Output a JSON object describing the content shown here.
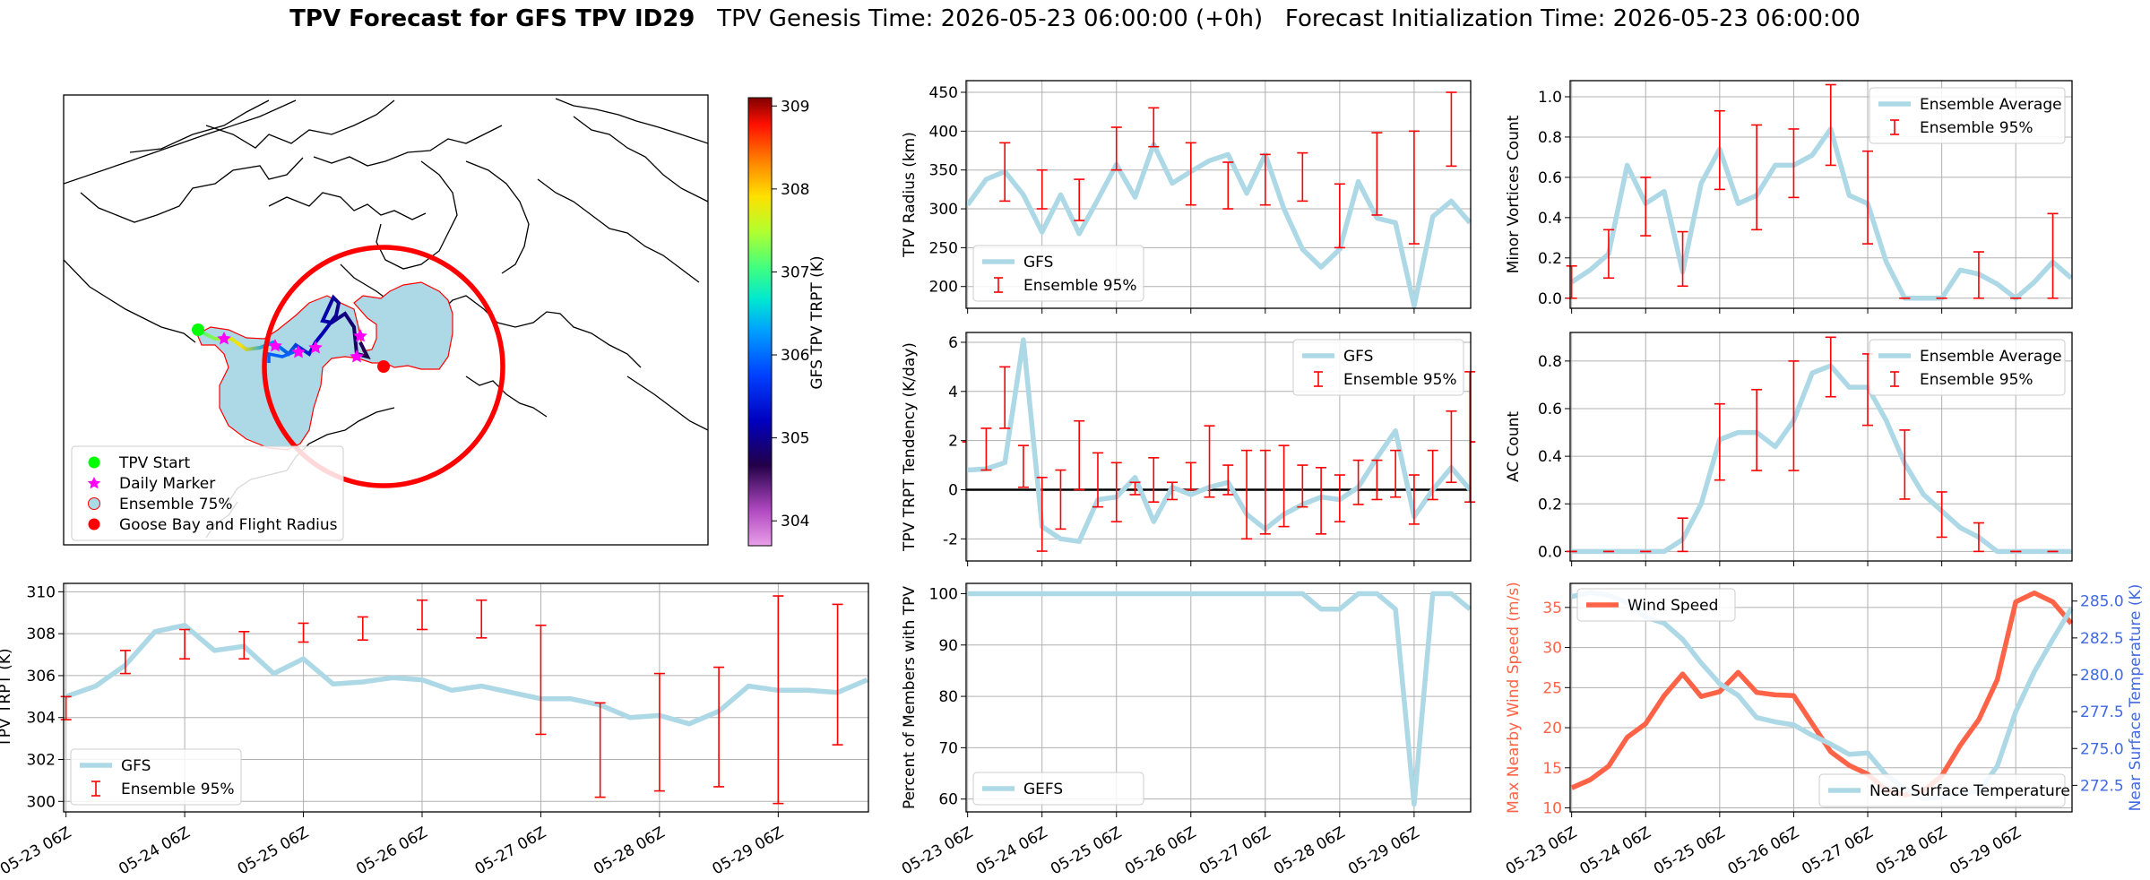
{
  "figure": {
    "title_bold": "TPV Forecast for GFS TPV ID29",
    "title_rest": "   TPV Genesis Time: 2026-05-23 06:00:00 (+0h)   Forecast Initialization Time: 2026-05-23 06:00:00"
  },
  "map": {
    "colorbar_label": "GFS TPV TRPT (K)",
    "colorbar_ticks": [
      304,
      305,
      306,
      307,
      308,
      309
    ],
    "colorbar_range": [
      303.7,
      309.1
    ],
    "legend": [
      {
        "label": "TPV Start",
        "marker": "circle",
        "color": "#00ff00"
      },
      {
        "label": "Daily Marker",
        "marker": "star",
        "color": "#ff00ff"
      },
      {
        "label": "Ensemble 75%",
        "marker": "patch",
        "color": "#add8e6"
      },
      {
        "label": "Goose Bay and Flight Radius",
        "marker": "circle",
        "color": "#ff0000"
      }
    ]
  },
  "colors": {
    "gfs": "#add8e6",
    "ensemble": "#ff0000",
    "wind": "#ff6347",
    "temp_axis": "#4169e1",
    "zero_line": "#000000"
  },
  "chart_data": [
    {
      "id": "radius",
      "type": "line",
      "ylabel": "TPV Radius (km)",
      "yticks": [
        200,
        250,
        300,
        350,
        400,
        450
      ],
      "ylim": [
        172,
        465
      ],
      "x": [
        0,
        0.25,
        0.5,
        0.75,
        1,
        1.25,
        1.5,
        1.75,
        2,
        2.25,
        2.5,
        2.75,
        3,
        3.25,
        3.5,
        3.75,
        4,
        4.25,
        4.5,
        4.75,
        5,
        5.25,
        5.5,
        5.75,
        6,
        6.25,
        6.5,
        6.75
      ],
      "series": [
        {
          "name": "GFS",
          "values": [
            305,
            338,
            348,
            318,
            270,
            318,
            268,
            312,
            357,
            315,
            383,
            333,
            348,
            362,
            370,
            320,
            370,
            300,
            248,
            225,
            248,
            335,
            288,
            282,
            175,
            290,
            310,
            282
          ]
        },
        {
          "name": "Ensemble 95%",
          "kind": "errorbar",
          "x": [
            0,
            0.25,
            0.5,
            0.75,
            1,
            1.25,
            1.5,
            1.75,
            2,
            2.25,
            2.5,
            2.75,
            3,
            3.25,
            3.5,
            3.75,
            4,
            4.25,
            4.5,
            4.75,
            5,
            5.25,
            5.5,
            5.75,
            6,
            6.25,
            6.5,
            6.75
          ],
          "lo": [
            0,
            0,
            310,
            0,
            300,
            0,
            285,
            0,
            350,
            0,
            380,
            0,
            305,
            0,
            300,
            0,
            305,
            0,
            310,
            0,
            250,
            0,
            292,
            0,
            255,
            0,
            355,
            0
          ],
          "hi": [
            0,
            0,
            385,
            0,
            350,
            0,
            338,
            0,
            405,
            0,
            430,
            0,
            385,
            0,
            360,
            0,
            370,
            0,
            372,
            0,
            332,
            0,
            398,
            0,
            400,
            0,
            450,
            0
          ]
        }
      ],
      "legend_loc": "lower-left"
    },
    {
      "id": "minor",
      "type": "line",
      "ylabel": "Minor Vortices Count",
      "yticks": [
        0.0,
        0.2,
        0.4,
        0.6,
        0.8,
        1.0
      ],
      "ylim": [
        -0.05,
        1.08
      ],
      "x": [
        0,
        0.25,
        0.5,
        0.75,
        1,
        1.25,
        1.5,
        1.75,
        2,
        2.25,
        2.5,
        2.75,
        3,
        3.25,
        3.5,
        3.75,
        4,
        4.25,
        4.5,
        4.75,
        5,
        5.25,
        5.5,
        5.75,
        6,
        6.25,
        6.5,
        6.75
      ],
      "series": [
        {
          "name": "Ensemble Average",
          "values": [
            0.08,
            0.14,
            0.22,
            0.66,
            0.47,
            0.53,
            0.13,
            0.57,
            0.74,
            0.47,
            0.51,
            0.66,
            0.66,
            0.71,
            0.84,
            0.51,
            0.47,
            0.18,
            0.0,
            0.0,
            0.0,
            0.14,
            0.12,
            0.07,
            0.0,
            0.08,
            0.18,
            0.1
          ]
        },
        {
          "name": "Ensemble 95%",
          "kind": "errorbar",
          "x": [
            0,
            0.5,
            1,
            1.5,
            2,
            2.5,
            3,
            3.5,
            4,
            4.5,
            5,
            5.5,
            6,
            6.5
          ],
          "lo": [
            0.0,
            0.1,
            0.31,
            0.06,
            0.54,
            0.34,
            0.5,
            0.66,
            0.27,
            0.0,
            0.0,
            0.0,
            0.0,
            0.0
          ],
          "hi": [
            0.16,
            0.34,
            0.6,
            0.33,
            0.93,
            0.86,
            0.84,
            1.06,
            0.73,
            0.0,
            0.0,
            0.23,
            0.0,
            0.42
          ]
        }
      ],
      "legend_loc": "upper-right"
    },
    {
      "id": "tendency",
      "type": "line",
      "ylabel": "TPV TRPT Tendency (K/day)",
      "yticks": [
        -2,
        0,
        2,
        4,
        6
      ],
      "ylim": [
        -2.9,
        6.4
      ],
      "zero_line": true,
      "x": [
        0,
        0.25,
        0.5,
        0.75,
        1,
        1.25,
        1.5,
        1.75,
        2,
        2.25,
        2.5,
        2.75,
        3,
        3.25,
        3.5,
        3.75,
        4,
        4.25,
        4.5,
        4.75,
        5,
        5.25,
        5.5,
        5.75,
        6,
        6.25,
        6.5,
        6.75
      ],
      "series": [
        {
          "name": "GFS",
          "values": [
            0.8,
            0.85,
            1.1,
            6.1,
            -1.5,
            -2.0,
            -2.1,
            -0.4,
            -0.3,
            0.5,
            -1.3,
            0.1,
            -0.2,
            0.1,
            0.3,
            -1.0,
            -1.6,
            -1.0,
            -0.6,
            -0.3,
            -0.4,
            0.1,
            1.3,
            2.4,
            -1.1,
            0.0,
            0.9,
            0.0
          ]
        },
        {
          "name": "Ensemble 95%",
          "kind": "errorbar",
          "x": [
            0.25,
            0.5,
            0.75,
            1,
            1.25,
            1.5,
            1.75,
            2,
            2.25,
            2.5,
            2.75,
            3,
            3.25,
            3.5,
            3.75,
            4,
            4.25,
            4.5,
            4.75,
            5,
            5.25,
            5.5,
            5.75,
            6,
            6.25,
            6.5,
            6.75
          ],
          "lo": [
            0.8,
            2.5,
            0.1,
            -2.5,
            -1.6,
            0.0,
            -0.7,
            -1.3,
            -0.2,
            -0.5,
            -0.4,
            0.0,
            -0.3,
            -0.2,
            -2.0,
            -1.8,
            -1.5,
            -0.7,
            -1.8,
            -1.3,
            -0.6,
            -0.4,
            -0.3,
            -1.4,
            -0.4,
            0.3,
            -0.5
          ],
          "hi": [
            2.5,
            5.0,
            1.8,
            0.5,
            0.8,
            2.8,
            1.5,
            1.1,
            0.3,
            1.3,
            0.3,
            1.1,
            2.6,
            1.0,
            1.6,
            1.6,
            1.8,
            1.0,
            0.9,
            0.6,
            1.2,
            1.2,
            1.6,
            0.6,
            1.6,
            3.2,
            4.8
          ]
        }
      ],
      "legend_loc": "upper-right"
    },
    {
      "id": "ac",
      "type": "line",
      "ylabel": "AC Count",
      "yticks": [
        0.0,
        0.2,
        0.4,
        0.6,
        0.8
      ],
      "ylim": [
        -0.04,
        0.92
      ],
      "x": [
        0,
        0.25,
        0.5,
        0.75,
        1,
        1.25,
        1.5,
        1.75,
        2,
        2.25,
        2.5,
        2.75,
        3,
        3.25,
        3.5,
        3.75,
        4,
        4.25,
        4.5,
        4.75,
        5,
        5.25,
        5.5,
        5.75,
        6,
        6.25,
        6.5,
        6.75
      ],
      "series": [
        {
          "name": "Ensemble Average",
          "values": [
            0.0,
            0.0,
            0.0,
            0.0,
            0.0,
            0.0,
            0.05,
            0.2,
            0.47,
            0.5,
            0.5,
            0.44,
            0.55,
            0.75,
            0.78,
            0.69,
            0.69,
            0.55,
            0.37,
            0.24,
            0.17,
            0.1,
            0.06,
            0.0,
            0.0,
            0.0,
            0.0,
            0.0
          ]
        },
        {
          "name": "Ensemble 95%",
          "kind": "errorbar",
          "x": [
            0,
            0.5,
            1,
            1.5,
            2,
            2.5,
            3,
            3.5,
            4,
            4.5,
            5,
            5.5,
            6,
            6.5
          ],
          "lo": [
            0.0,
            0.0,
            0.0,
            0.0,
            0.3,
            0.34,
            0.34,
            0.65,
            0.53,
            0.22,
            0.06,
            0.0,
            0.0,
            0.0
          ],
          "hi": [
            0.0,
            0.0,
            0.0,
            0.14,
            0.62,
            0.68,
            0.8,
            0.9,
            0.83,
            0.51,
            0.25,
            0.12,
            0.0,
            0.0
          ]
        }
      ],
      "legend_loc": "upper-right"
    },
    {
      "id": "trpt",
      "type": "line",
      "ylabel": "TPV TRPT (K)",
      "yticks": [
        300,
        302,
        304,
        306,
        308,
        310
      ],
      "ylim": [
        299.5,
        310.4
      ],
      "xtick_labels": [
        "05-23 06Z",
        "05-24 06Z",
        "05-25 06Z",
        "05-26 06Z",
        "05-27 06Z",
        "05-28 06Z",
        "05-29 06Z"
      ],
      "x": [
        0,
        0.25,
        0.5,
        0.75,
        1,
        1.25,
        1.5,
        1.75,
        2,
        2.25,
        2.5,
        2.75,
        3,
        3.25,
        3.5,
        3.75,
        4,
        4.25,
        4.5,
        4.75,
        5,
        5.25,
        5.5,
        5.75,
        6,
        6.25,
        6.5,
        6.75
      ],
      "series": [
        {
          "name": "GFS",
          "values": [
            305.0,
            305.5,
            306.5,
            308.1,
            308.4,
            307.2,
            307.4,
            306.1,
            306.8,
            305.6,
            305.7,
            305.9,
            305.8,
            305.3,
            305.5,
            305.2,
            304.9,
            304.9,
            304.6,
            304.0,
            304.1,
            303.7,
            304.3,
            305.5,
            305.3,
            305.3,
            305.2,
            305.8
          ]
        },
        {
          "name": "Ensemble 95%",
          "kind": "errorbar",
          "x": [
            0,
            0.5,
            1,
            1.5,
            2,
            2.5,
            3,
            3.5,
            4,
            4.5,
            5,
            5.5,
            6,
            6.5
          ],
          "lo": [
            303.9,
            306.1,
            306.8,
            306.8,
            307.6,
            307.7,
            308.2,
            307.8,
            303.2,
            300.2,
            300.5,
            300.7,
            299.9,
            302.7
          ],
          "hi": [
            305.0,
            307.2,
            308.2,
            308.1,
            308.5,
            308.8,
            309.6,
            309.6,
            308.4,
            304.7,
            306.1,
            306.4,
            309.8,
            309.4
          ]
        }
      ],
      "legend_loc": "lower-left"
    },
    {
      "id": "percent",
      "type": "line",
      "ylabel": "Percent of Members with TPV",
      "yticks": [
        60,
        70,
        80,
        90,
        100
      ],
      "ylim": [
        57.5,
        102
      ],
      "xtick_labels": [
        "05-23 06Z",
        "05-24 06Z",
        "05-25 06Z",
        "05-26 06Z",
        "05-27 06Z",
        "05-28 06Z",
        "05-29 06Z"
      ],
      "x": [
        0,
        0.25,
        0.5,
        0.75,
        1,
        1.25,
        1.5,
        1.75,
        2,
        2.25,
        2.5,
        2.75,
        3,
        3.25,
        3.5,
        3.75,
        4,
        4.25,
        4.5,
        4.75,
        5,
        5.25,
        5.5,
        5.75,
        6,
        6.25,
        6.5,
        6.75
      ],
      "series": [
        {
          "name": "GEFS",
          "values": [
            100,
            100,
            100,
            100,
            100,
            100,
            100,
            100,
            100,
            100,
            100,
            100,
            100,
            100,
            100,
            100,
            100,
            100,
            100,
            97,
            97,
            100,
            100,
            97,
            59,
            100,
            100,
            97
          ]
        }
      ],
      "legend_loc": "lower-left"
    },
    {
      "id": "wind",
      "type": "line",
      "ylabel": "Max Nearby Wind Speed (m/s)",
      "ylabel_right": "Near Surface Temperature (K)",
      "yticks": [
        10,
        15,
        20,
        25,
        30,
        35
      ],
      "ylim": [
        9.5,
        38
      ],
      "yticks_right": [
        272.5,
        275.0,
        277.5,
        280.0,
        282.5,
        285.0
      ],
      "ylim_right": [
        270.7,
        286.2
      ],
      "xtick_labels": [
        "05-23 06Z",
        "05-24 06Z",
        "05-25 06Z",
        "05-26 06Z",
        "05-27 06Z",
        "05-28 06Z",
        "05-29 06Z"
      ],
      "x": [
        0,
        0.25,
        0.5,
        0.75,
        1,
        1.25,
        1.5,
        1.75,
        2,
        2.25,
        2.5,
        2.75,
        3,
        3.25,
        3.5,
        3.75,
        4,
        4.25,
        4.5,
        4.75,
        5,
        5.25,
        5.5,
        5.75,
        6,
        6.25,
        6.5,
        6.75
      ],
      "series": [
        {
          "name": "Wind Speed",
          "axis": "left",
          "values": [
            12.5,
            13.5,
            15.2,
            18.8,
            20.5,
            24.0,
            26.7,
            23.9,
            24.5,
            26.9,
            24.4,
            24.1,
            24.0,
            20.5,
            17.0,
            15.3,
            14.2,
            12.2,
            11.6,
            12.1,
            14.0,
            17.8,
            21.0,
            26.0,
            35.7,
            36.8,
            35.7,
            33.0
          ]
        },
        {
          "name": "Near Surface Temperature",
          "axis": "right",
          "values": [
            285.3,
            285.6,
            285.4,
            284.9,
            283.9,
            283.5,
            282.4,
            280.8,
            279.4,
            278.6,
            277.1,
            276.8,
            276.6,
            275.9,
            275.3,
            274.6,
            274.7,
            273.2,
            272.3,
            271.6,
            271.7,
            272.0,
            272.1,
            273.8,
            277.5,
            280.2,
            282.4,
            284.5
          ]
        }
      ],
      "legend_loc": "split"
    }
  ]
}
